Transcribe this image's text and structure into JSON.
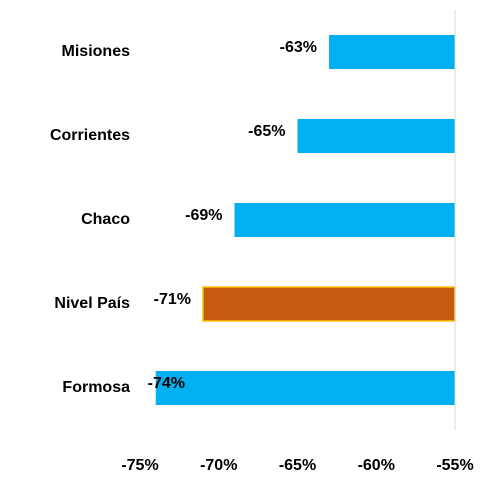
{
  "chart_data": {
    "type": "bar",
    "orientation": "horizontal",
    "categories": [
      "Misiones",
      "Corrientes",
      "Chaco",
      "Nivel País",
      "Formosa"
    ],
    "values": [
      -63,
      -65,
      -69,
      -71,
      -74
    ],
    "value_labels": [
      "-63%",
      "-65%",
      "-69%",
      "-71%",
      "-74%"
    ],
    "colors": [
      "#00b0f0",
      "#00b0f0",
      "#00b0f0",
      "#c55a11",
      "#00b0f0"
    ],
    "xlim": [
      -75,
      -55
    ],
    "xticks": [
      {
        "value": -75,
        "label": "-75%"
      },
      {
        "value": -70,
        "label": "-70%"
      },
      {
        "value": -65,
        "label": "-65%"
      },
      {
        "value": -60,
        "label": "-60%"
      },
      {
        "value": -55,
        "label": "-55%"
      }
    ],
    "grid": false
  }
}
